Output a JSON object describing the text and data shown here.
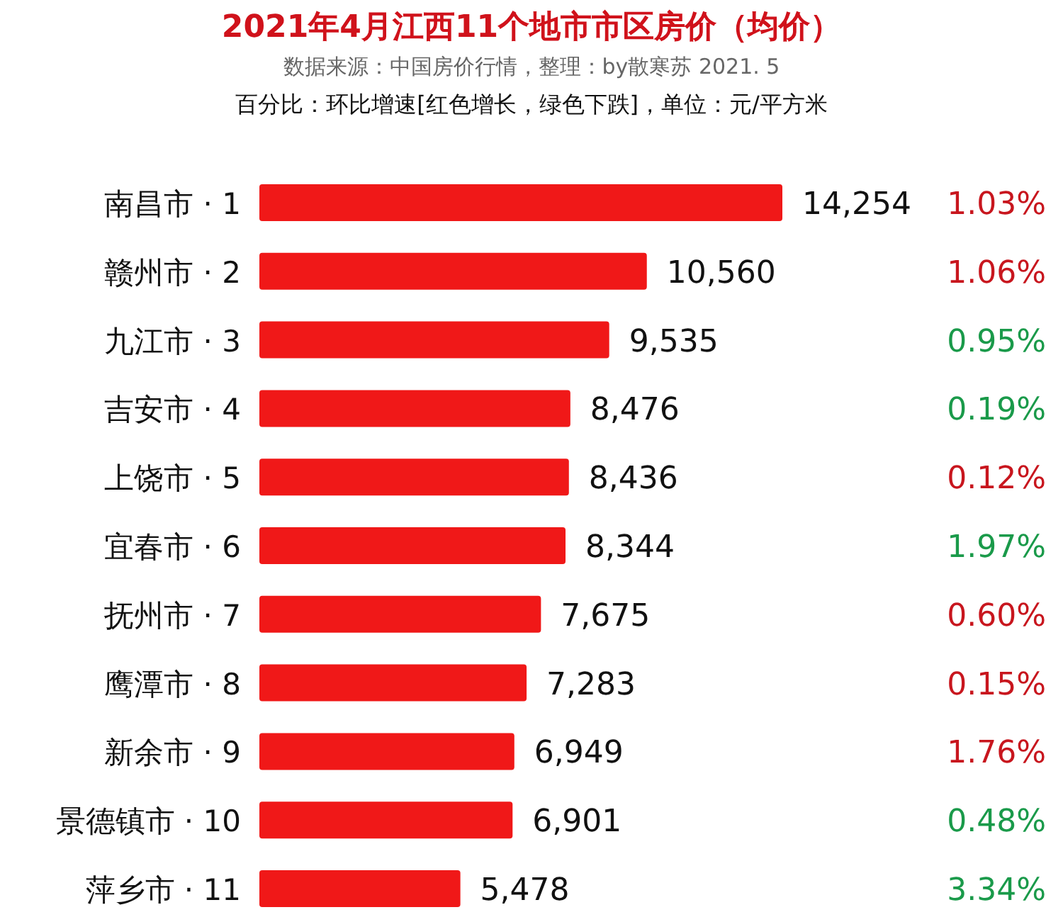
{
  "chart_data": [
    {
      "type": "bar",
      "orientation": "horizontal",
      "title": "2021年4月江西11个地市市区房价（均价）",
      "subtitle": "数据来源：中国房价行情，整理：by散寒苏  2021. 5",
      "annotations": [
        "百分比：环比增速[红色增长，绿色下跌]，单位：元/平方米"
      ],
      "categories": [
        "南昌市 · 1",
        "赣州市 · 2",
        "九江市 · 3",
        "吉安市 · 4",
        "上饶市 · 5",
        "宜春市 · 6",
        "抚州市 · 7",
        "鹰潭市 · 8",
        "新余市 · 9",
        "景德镇市 · 10",
        "萍乡市 · 11"
      ],
      "series": [
        {
          "color": "#f01818",
          "values": [
            14254,
            10560,
            9535,
            8476,
            8436,
            8344,
            7675,
            7283,
            6949,
            6901,
            5478
          ],
          "value_labels": [
            "14,254",
            "10,560",
            "9,535",
            "8,476",
            "8,436",
            "8,344",
            "7,675",
            "7,283",
            "6,949",
            "6,901",
            "5,478"
          ]
        }
      ]
    },
    {
      "type": "other",
      "value_labels": [
        "1.03%",
        "1.06%",
        "0.95%",
        "0.19%",
        "0.12%",
        "1.97%",
        "0.60%",
        "0.15%",
        "1.76%",
        "0.48%",
        "3.34%"
      ],
      "colors": [
        "#c8161e",
        "#c8161e",
        "#1a9a4a",
        "#1a9a4a",
        "#c8161e",
        "#1a9a4a",
        "#c8161e",
        "#c8161e",
        "#c8161e",
        "#1a9a4a",
        "#1a9a4a"
      ]
    }
  ]
}
